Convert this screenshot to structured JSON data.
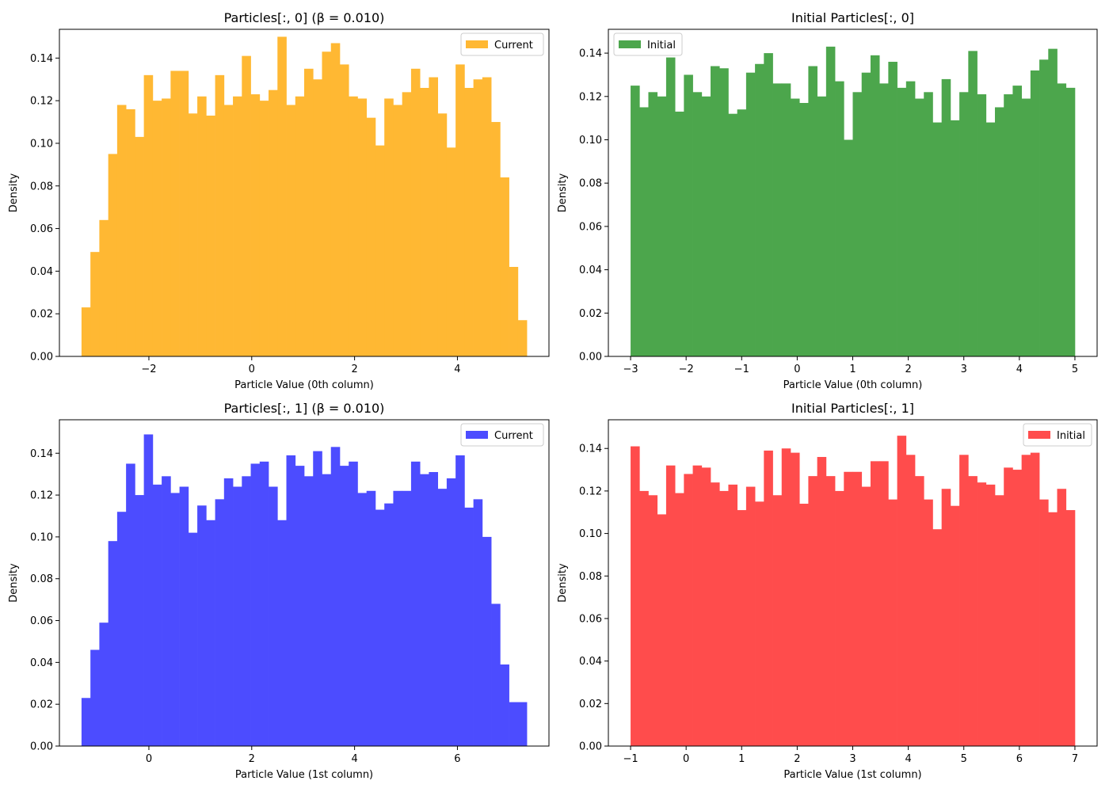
{
  "figure": {
    "background": "#ffffff"
  },
  "chart_data": [
    {
      "type": "bar",
      "title": "Particles[:, 0] (β = 0.010)",
      "xlabel": "Particle Value (0th column)",
      "ylabel": "Density",
      "legend": {
        "label": "Current",
        "location": "upper right"
      },
      "color": "#ffb833",
      "xlim": [
        -3.74,
        5.78
      ],
      "ylim": [
        0,
        0.1535
      ],
      "xticks": [
        -2,
        0,
        2,
        4
      ],
      "xtick_labels": [
        "−2",
        "0",
        "2",
        "4"
      ],
      "yticks": [
        0,
        0.02,
        0.04,
        0.06,
        0.08,
        0.1,
        0.12,
        0.14
      ],
      "ytick_labels": [
        "0.00",
        "0.02",
        "0.04",
        "0.06",
        "0.08",
        "0.10",
        "0.12",
        "0.14"
      ],
      "grid": false,
      "bin_range": [
        -3.31,
        5.35
      ],
      "values": [
        0.023,
        0.049,
        0.064,
        0.095,
        0.118,
        0.116,
        0.103,
        0.132,
        0.12,
        0.121,
        0.134,
        0.134,
        0.114,
        0.122,
        0.113,
        0.132,
        0.118,
        0.122,
        0.141,
        0.123,
        0.12,
        0.125,
        0.15,
        0.118,
        0.122,
        0.135,
        0.13,
        0.143,
        0.147,
        0.137,
        0.122,
        0.121,
        0.112,
        0.099,
        0.121,
        0.118,
        0.124,
        0.135,
        0.126,
        0.131,
        0.114,
        0.098,
        0.137,
        0.126,
        0.13,
        0.131,
        0.11,
        0.084,
        0.042,
        0.017
      ]
    },
    {
      "type": "bar",
      "title": "Initial Particles[:, 0]",
      "xlabel": "Particle Value (0th column)",
      "ylabel": "Density",
      "legend": {
        "label": "Initial",
        "location": "upper left"
      },
      "color": "#4ca64c",
      "xlim": [
        -3.4,
        5.4
      ],
      "ylim": [
        0,
        0.151
      ],
      "xticks": [
        -3,
        -2,
        -1,
        0,
        1,
        2,
        3,
        4,
        5
      ],
      "xtick_labels": [
        "−3",
        "−2",
        "−1",
        "0",
        "1",
        "2",
        "3",
        "4",
        "5"
      ],
      "yticks": [
        0,
        0.02,
        0.04,
        0.06,
        0.08,
        0.1,
        0.12,
        0.14
      ],
      "ytick_labels": [
        "0.00",
        "0.02",
        "0.04",
        "0.06",
        "0.08",
        "0.10",
        "0.12",
        "0.14"
      ],
      "grid": false,
      "bin_range": [
        -3,
        5
      ],
      "values": [
        0.125,
        0.115,
        0.122,
        0.12,
        0.138,
        0.113,
        0.13,
        0.122,
        0.12,
        0.134,
        0.133,
        0.112,
        0.114,
        0.131,
        0.135,
        0.14,
        0.126,
        0.126,
        0.119,
        0.117,
        0.134,
        0.12,
        0.143,
        0.127,
        0.1,
        0.122,
        0.131,
        0.139,
        0.126,
        0.136,
        0.124,
        0.127,
        0.119,
        0.122,
        0.108,
        0.128,
        0.109,
        0.122,
        0.141,
        0.121,
        0.108,
        0.115,
        0.121,
        0.125,
        0.119,
        0.132,
        0.137,
        0.142,
        0.126,
        0.124
      ]
    },
    {
      "type": "bar",
      "title": "Particles[:, 1] (β = 0.010)",
      "xlabel": "Particle Value (1st column)",
      "ylabel": "Density",
      "legend": {
        "label": "Current",
        "location": "upper right"
      },
      "color": "#4c4cff",
      "xlim": [
        -1.74,
        7.78
      ],
      "ylim": [
        0,
        0.156
      ],
      "xticks": [
        0,
        2,
        4,
        6
      ],
      "xtick_labels": [
        "0",
        "2",
        "4",
        "6"
      ],
      "yticks": [
        0,
        0.02,
        0.04,
        0.06,
        0.08,
        0.1,
        0.12,
        0.14
      ],
      "ytick_labels": [
        "0.00",
        "0.02",
        "0.04",
        "0.06",
        "0.08",
        "0.10",
        "0.12",
        "0.14"
      ],
      "grid": false,
      "bin_range": [
        -1.31,
        7.35
      ],
      "values": [
        0.023,
        0.046,
        0.059,
        0.098,
        0.112,
        0.135,
        0.12,
        0.149,
        0.125,
        0.129,
        0.121,
        0.124,
        0.102,
        0.115,
        0.108,
        0.118,
        0.128,
        0.124,
        0.129,
        0.135,
        0.136,
        0.124,
        0.108,
        0.139,
        0.134,
        0.129,
        0.141,
        0.13,
        0.143,
        0.134,
        0.136,
        0.121,
        0.122,
        0.113,
        0.116,
        0.122,
        0.122,
        0.136,
        0.13,
        0.131,
        0.123,
        0.128,
        0.139,
        0.114,
        0.118,
        0.1,
        0.068,
        0.039,
        0.021,
        0.021
      ]
    },
    {
      "type": "bar",
      "title": "Initial Particles[:, 1]",
      "xlabel": "Particle Value (1st column)",
      "ylabel": "Density",
      "legend": {
        "label": "Initial",
        "location": "upper right"
      },
      "color": "#ff4c4c",
      "xlim": [
        -1.4,
        7.4
      ],
      "ylim": [
        0,
        0.1535
      ],
      "xticks": [
        -1,
        0,
        1,
        2,
        3,
        4,
        5,
        6,
        7
      ],
      "xtick_labels": [
        "−1",
        "0",
        "1",
        "2",
        "3",
        "4",
        "5",
        "6",
        "7"
      ],
      "yticks": [
        0,
        0.02,
        0.04,
        0.06,
        0.08,
        0.1,
        0.12,
        0.14
      ],
      "ytick_labels": [
        "0.00",
        "0.02",
        "0.04",
        "0.06",
        "0.08",
        "0.10",
        "0.12",
        "0.14"
      ],
      "grid": false,
      "bin_range": [
        -1,
        7
      ],
      "values": [
        0.141,
        0.12,
        0.118,
        0.109,
        0.132,
        0.119,
        0.128,
        0.132,
        0.131,
        0.124,
        0.12,
        0.123,
        0.111,
        0.122,
        0.115,
        0.139,
        0.118,
        0.14,
        0.138,
        0.114,
        0.127,
        0.136,
        0.127,
        0.12,
        0.129,
        0.129,
        0.122,
        0.134,
        0.134,
        0.116,
        0.146,
        0.137,
        0.127,
        0.116,
        0.102,
        0.121,
        0.113,
        0.137,
        0.127,
        0.124,
        0.123,
        0.118,
        0.131,
        0.13,
        0.137,
        0.138,
        0.116,
        0.11,
        0.121,
        0.111
      ]
    }
  ]
}
